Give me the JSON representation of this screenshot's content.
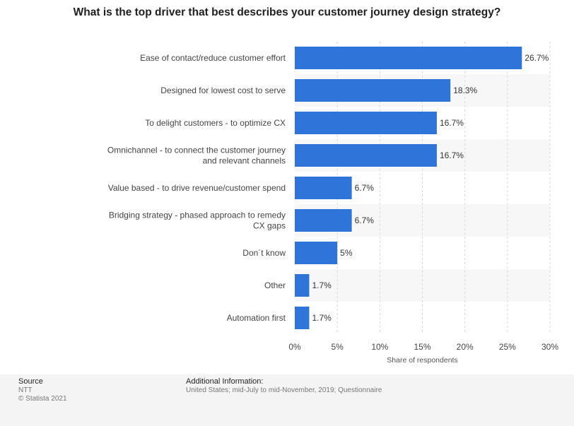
{
  "chart_data": {
    "type": "bar",
    "orientation": "horizontal",
    "title": "What is the top driver that best describes your customer journey design strategy?",
    "categories": [
      [
        "Ease of contact/reduce customer effort"
      ],
      [
        "Designed for lowest cost to serve"
      ],
      [
        "To delight customers - to optimize CX"
      ],
      [
        "Omnichannel - to connect the customer journey",
        "and relevant channels"
      ],
      [
        "Value based - to drive revenue/customer spend"
      ],
      [
        "Bridging strategy - phased approach to remedy",
        "CX gaps"
      ],
      [
        "Don´t know"
      ],
      [
        "Other"
      ],
      [
        "Automation first"
      ]
    ],
    "values": [
      26.7,
      18.3,
      16.7,
      16.7,
      6.7,
      6.7,
      5,
      1.7,
      1.7
    ],
    "value_labels": [
      "26.7%",
      "18.3%",
      "16.7%",
      "16.7%",
      "6.7%",
      "6.7%",
      "5%",
      "1.7%",
      "1.7%"
    ],
    "xlabel": "Share of respondents",
    "ylabel": "",
    "xlim": [
      0,
      30
    ],
    "ticks": [
      0,
      5,
      10,
      15,
      20,
      25,
      30
    ],
    "tick_labels": [
      "0%",
      "5%",
      "10%",
      "15%",
      "20%",
      "25%",
      "30%"
    ],
    "bar_color": "#2f74d8",
    "band_color": "#f7f7f7",
    "grid": true
  },
  "footer": {
    "source_label": "Source",
    "source_name": "NTT",
    "copyright": "© Statista 2021",
    "additional_label": "Additional Information:",
    "additional_text": "United States; mid-July to mid-November, 2019; Questionnaire"
  }
}
